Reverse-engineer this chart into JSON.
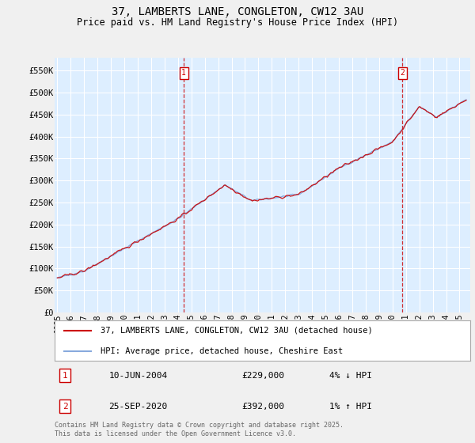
{
  "title": "37, LAMBERTS LANE, CONGLETON, CW12 3AU",
  "subtitle": "Price paid vs. HM Land Registry's House Price Index (HPI)",
  "ylabel_ticks": [
    "£0",
    "£50K",
    "£100K",
    "£150K",
    "£200K",
    "£250K",
    "£300K",
    "£350K",
    "£400K",
    "£450K",
    "£500K",
    "£550K"
  ],
  "ytick_values": [
    0,
    50000,
    100000,
    150000,
    200000,
    250000,
    300000,
    350000,
    400000,
    450000,
    500000,
    550000
  ],
  "ylim": [
    0,
    580000
  ],
  "xlim_start": 1994.8,
  "xlim_end": 2025.8,
  "x_years": [
    1995,
    1996,
    1997,
    1998,
    1999,
    2000,
    2001,
    2002,
    2003,
    2004,
    2005,
    2006,
    2007,
    2008,
    2009,
    2010,
    2011,
    2012,
    2013,
    2014,
    2015,
    2016,
    2017,
    2018,
    2019,
    2020,
    2021,
    2022,
    2023,
    2024,
    2025
  ],
  "red_line_color": "#cc0000",
  "blue_line_color": "#88aadd",
  "background_color": "#ddeeff",
  "fig_bg_color": "#f0f0f0",
  "grid_color": "#ffffff",
  "vline1_x": 2004.44,
  "vline2_x": 2020.73,
  "marker1_label": "1",
  "marker2_label": "2",
  "legend_line1": "37, LAMBERTS LANE, CONGLETON, CW12 3AU (detached house)",
  "legend_line2": "HPI: Average price, detached house, Cheshire East",
  "annotation1_num": "1",
  "annotation1_date": "10-JUN-2004",
  "annotation1_price": "£229,000",
  "annotation1_hpi": "4% ↓ HPI",
  "annotation2_num": "2",
  "annotation2_date": "25-SEP-2020",
  "annotation2_price": "£392,000",
  "annotation2_hpi": "1% ↑ HPI",
  "footer": "Contains HM Land Registry data © Crown copyright and database right 2025.\nThis data is licensed under the Open Government Licence v3.0."
}
